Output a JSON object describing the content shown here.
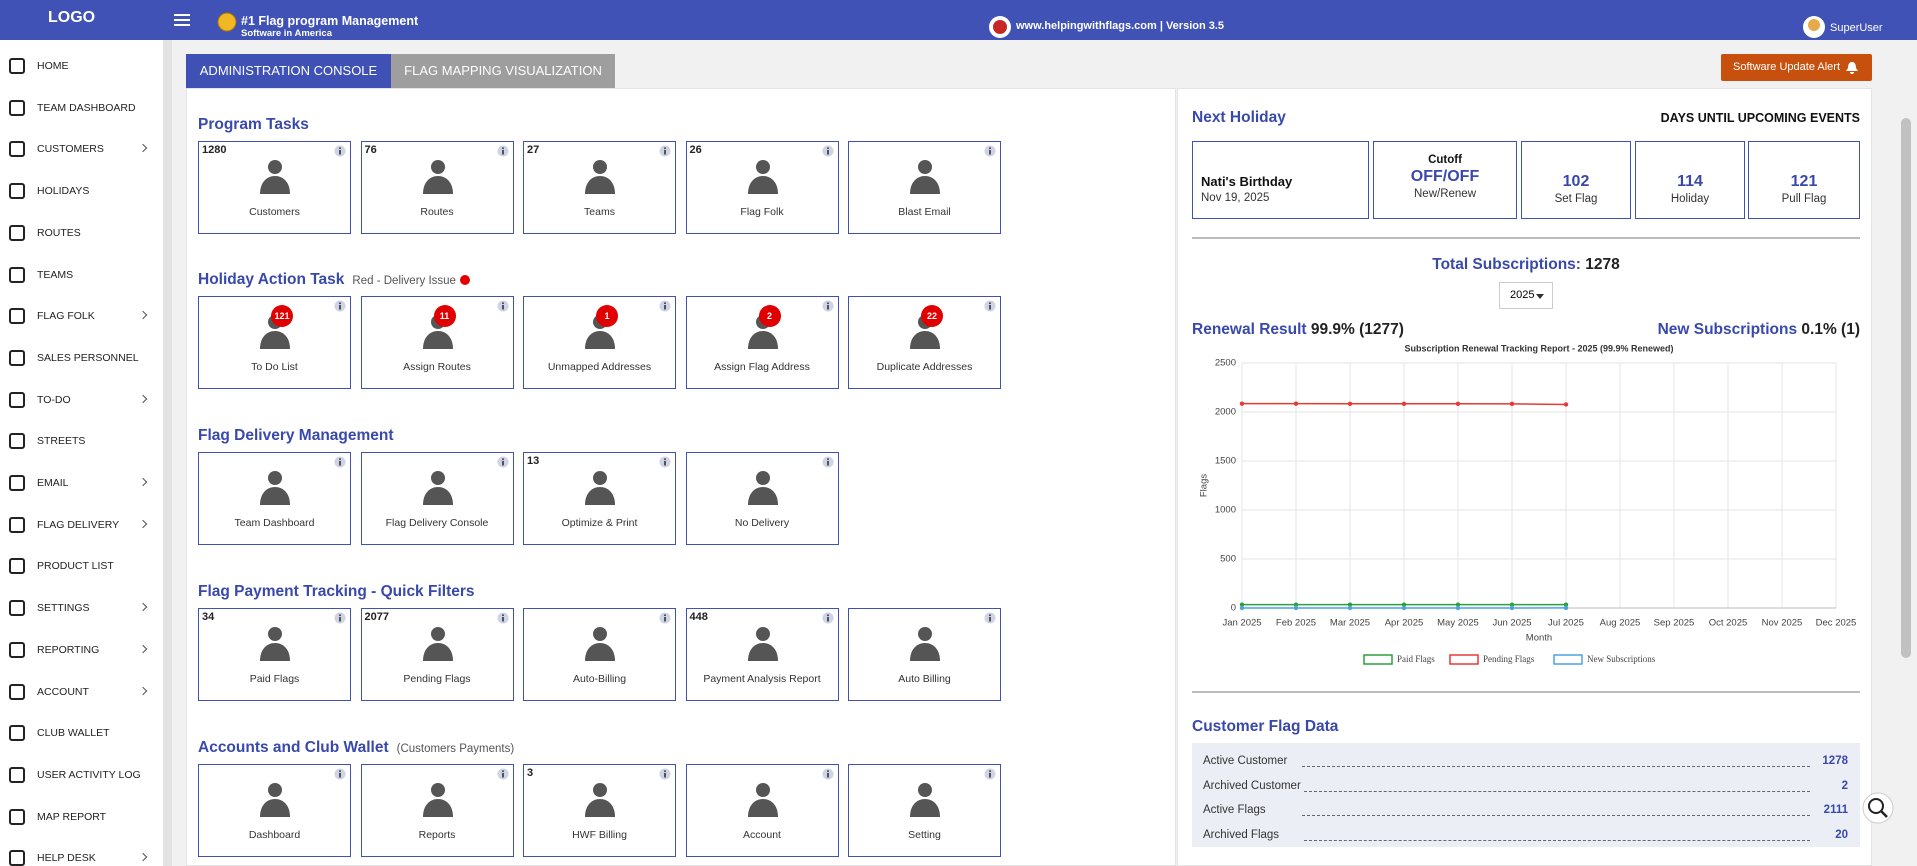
{
  "header": {
    "logo": "LOGO",
    "title": "#1 Flag program Management",
    "subtitle": "Software in America",
    "site": "www.helpingwithflags.com | Version 3.5",
    "user": "SuperUser"
  },
  "sidebar": [
    "HOME",
    "TEAM DASHBOARD",
    "CUSTOMERS",
    "HOLIDAYS",
    "ROUTES",
    "TEAMS",
    "FLAG FOLK",
    "SALES PERSONNEL",
    "TO-DO",
    "STREETS",
    "EMAIL",
    "FLAG DELIVERY",
    "PRODUCT LIST",
    "SETTINGS",
    "REPORTING",
    "ACCOUNT",
    "CLUB WALLET",
    "USER ACTIVITY LOG",
    "MAP REPORT",
    "HELP DESK"
  ],
  "tabs": [
    "ADMINISTRATION CONSOLE",
    "FLAG MAPPING VISUALIZATION"
  ],
  "alert": "Software Update Alert",
  "sections": [
    {
      "title": "Program Tasks",
      "tiles": [
        {
          "count": 1280,
          "label": "Customers"
        },
        {
          "count": 76,
          "label": "Routes"
        },
        {
          "count": 27,
          "label": "Teams"
        },
        {
          "count": 26,
          "label": "Flag Folk"
        },
        {
          "label": "Blast Email"
        }
      ]
    },
    {
      "title": "Holiday Action Task",
      "note": "Red - Delivery Issue",
      "tiles": [
        {
          "badge": 121,
          "label": "To Do List"
        },
        {
          "badge": 11,
          "label": "Assign Routes"
        },
        {
          "badge": 1,
          "label": "Unmapped Addresses"
        },
        {
          "badge": 2,
          "label": "Assign Flag Address"
        },
        {
          "badge": 22,
          "label": "Duplicate Addresses"
        }
      ]
    },
    {
      "title": "Flag Delivery Management",
      "tiles": [
        {
          "label": "Team Dashboard"
        },
        {
          "label": "Flag Delivery Console"
        },
        {
          "count": 13,
          "label": "Optimize & Print"
        },
        {
          "label": "No Delivery"
        }
      ]
    },
    {
      "title": "Flag Payment Tracking - Quick Filters",
      "tiles": [
        {
          "count": 34,
          "label": "Paid Flags"
        },
        {
          "count": 2077,
          "label": "Pending Flags"
        },
        {
          "label": "Auto-Billing"
        },
        {
          "count": 448,
          "label": "Payment Analysis Report"
        },
        {
          "label": "Auto Billing"
        }
      ]
    },
    {
      "title": "Accounts and Club Wallet",
      "note": "(Customers Payments)",
      "tiles": [
        {
          "label": "Dashboard"
        },
        {
          "label": "Reports"
        },
        {
          "count": 3,
          "label": "HWF Billing"
        },
        {
          "label": "Account"
        },
        {
          "label": "Setting"
        }
      ]
    }
  ],
  "holiday": {
    "title": "Next Holiday",
    "events_title": "DAYS UNTIL UPCOMING EVENTS",
    "name": "Nati's Birthday",
    "date": "Nov 19, 2025",
    "cutoff": {
      "label": "Cutoff",
      "value": "OFF/OFF",
      "sub": "New/Renew"
    },
    "events": [
      {
        "days": 102,
        "label": "Set Flag"
      },
      {
        "days": 114,
        "label": "Holiday"
      },
      {
        "days": 121,
        "label": "Pull Flag"
      }
    ]
  },
  "subscriptions": {
    "label": "Total Subscriptions:",
    "total": 1278,
    "year": "2025",
    "renewal_label": "Renewal Result",
    "renewal_value": "99.9% (1277)",
    "new_label": "New Subscriptions",
    "new_value": "0.1% (1)"
  },
  "chart_data": {
    "type": "line",
    "title": "Subscription Renewal Tracking Report - 2025 (99.9% Renewed)",
    "x_label": "Month",
    "y_label": "Flags",
    "categories": [
      "Jan 2025",
      "Feb 2025",
      "Mar 2025",
      "Apr 2025",
      "May 2025",
      "Jun 2025",
      "Jul 2025",
      "Aug 2025",
      "Sep 2025",
      "Oct 2025",
      "Nov 2025",
      "Dec 2025"
    ],
    "ylim": [
      0,
      2500
    ],
    "yticks": [
      0,
      500,
      1000,
      1500,
      2000,
      2500
    ],
    "grid": true,
    "series": [
      {
        "name": "Paid Flags",
        "color": "#2e9e3e",
        "values": [
          34,
          34,
          34,
          34,
          34,
          34,
          34,
          null,
          null,
          null,
          null,
          null
        ]
      },
      {
        "name": "Pending Flags",
        "color": "#e53935",
        "values": [
          2085,
          2085,
          2084,
          2084,
          2084,
          2083,
          2077,
          null,
          null,
          null,
          null,
          null
        ]
      },
      {
        "name": "New Subscriptions",
        "color": "#4aa3df",
        "values": [
          0,
          0,
          0,
          0,
          0,
          0,
          1,
          null,
          null,
          null,
          null,
          null
        ]
      }
    ]
  },
  "customer_data": {
    "title": "Customer Flag Data",
    "rows": [
      {
        "label": "Active Customer",
        "value": 1278
      },
      {
        "label": "Archived Customer",
        "value": 2
      },
      {
        "label": "Active Flags",
        "value": 2111
      },
      {
        "label": "Archived Flags",
        "value": 20
      }
    ]
  }
}
